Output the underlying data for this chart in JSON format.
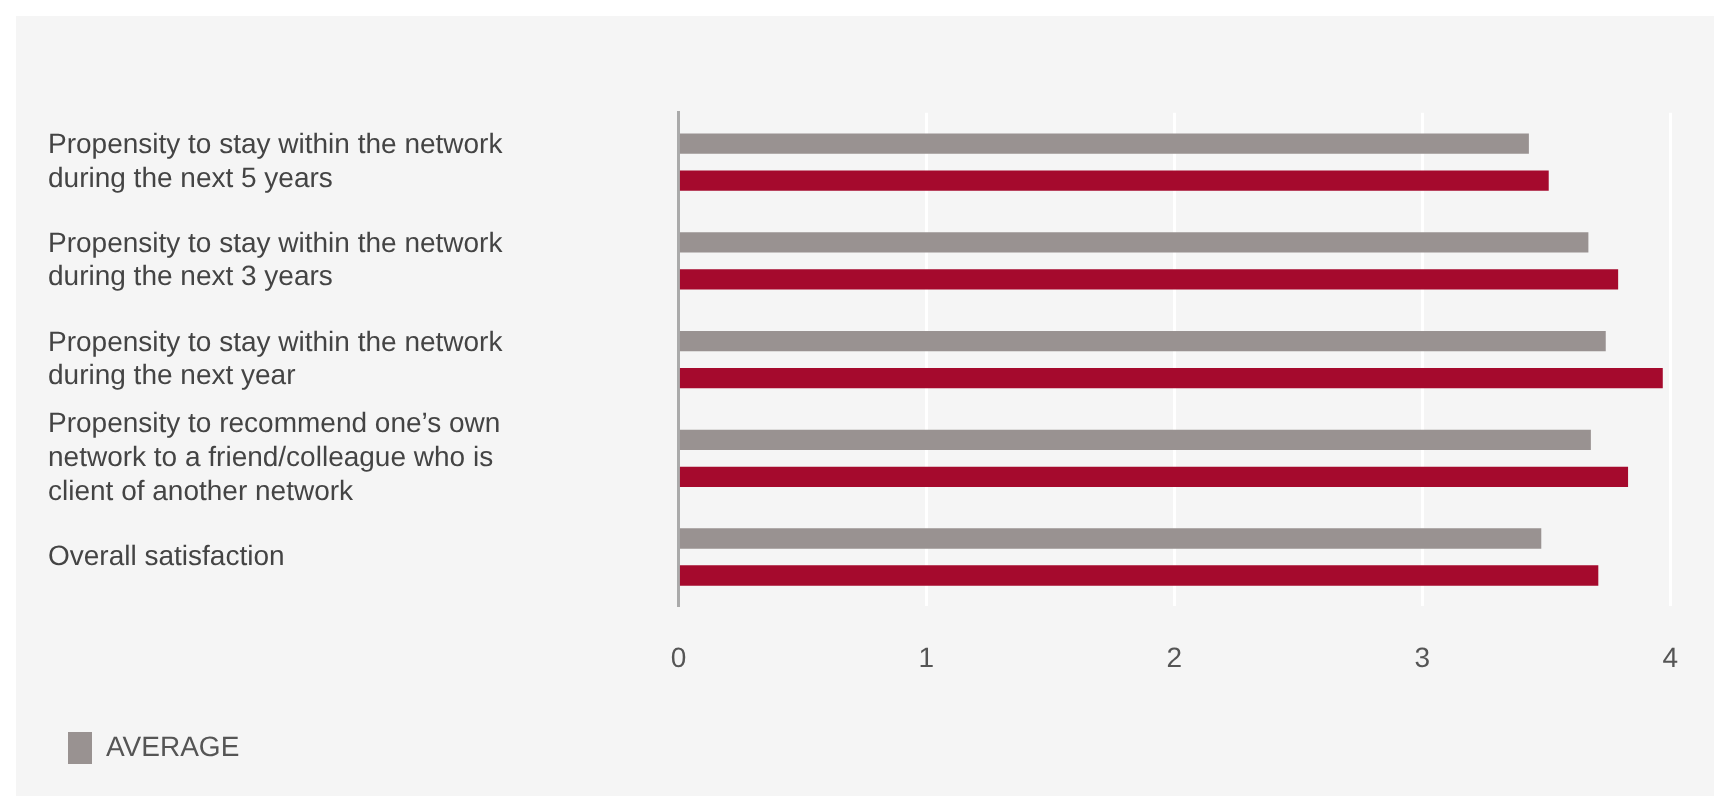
{
  "chart_data": {
    "type": "bar",
    "orientation": "horizontal",
    "categories": [
      "Propensity to stay within the network during the next 5 years",
      "Propensity to stay within the network during the next 3 years",
      "Propensity to stay within the network during the next year",
      "Propensity to recommend one’s own network to a friend/colleague who is client of another network",
      "Overall satisfaction"
    ],
    "series": [
      {
        "name": "AVERAGE",
        "color": "#999291",
        "values": [
          3.43,
          3.67,
          3.74,
          3.68,
          3.48
        ]
      },
      {
        "color": "#a50a2d",
        "values": [
          3.51,
          3.79,
          3.97,
          3.83,
          3.71
        ]
      }
    ],
    "xlim": [
      0,
      4
    ],
    "xticks": [
      0,
      1,
      2,
      3,
      4
    ],
    "grid": "x",
    "legend": "bottom left"
  }
}
